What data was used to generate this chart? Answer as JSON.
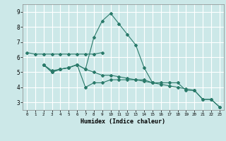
{
  "background_color": "#cce8e8",
  "grid_color": "#ffffff",
  "line_color": "#2a7a6a",
  "x_label": "Humidex (Indice chaleur)",
  "ylim": [
    2.5,
    9.5
  ],
  "xlim": [
    -0.5,
    23.5
  ],
  "yticks": [
    3,
    4,
    5,
    6,
    7,
    8,
    9
  ],
  "xticks": [
    0,
    1,
    2,
    3,
    4,
    5,
    6,
    7,
    8,
    9,
    10,
    11,
    12,
    13,
    14,
    15,
    16,
    17,
    18,
    19,
    20,
    21,
    22,
    23
  ],
  "series": [
    {
      "x": [
        0,
        1,
        2,
        3,
        4,
        5,
        6,
        7,
        8,
        9
      ],
      "y": [
        6.3,
        6.2,
        6.2,
        6.2,
        6.2,
        6.2,
        6.2,
        6.2,
        6.2,
        6.3
      ]
    },
    {
      "x": [
        2,
        3,
        4,
        5,
        6,
        7,
        8,
        9,
        10,
        11,
        12,
        13,
        14,
        15
      ],
      "y": [
        5.5,
        5.0,
        5.2,
        5.3,
        5.5,
        5.2,
        7.3,
        8.4,
        8.9,
        8.2,
        7.5,
        6.8,
        5.3,
        4.3
      ]
    },
    {
      "x": [
        2,
        3,
        4,
        5,
        6,
        7,
        8,
        9,
        10,
        11,
        12,
        13,
        14,
        15,
        16,
        17,
        18,
        19,
        20,
        21,
        22,
        23
      ],
      "y": [
        5.5,
        5.0,
        5.2,
        5.3,
        5.5,
        4.0,
        4.3,
        4.3,
        4.5,
        4.5,
        4.5,
        4.5,
        4.5,
        4.3,
        4.3,
        4.3,
        4.3,
        3.8,
        3.8,
        3.2,
        3.2,
        2.7
      ]
    },
    {
      "x": [
        2,
        3,
        4,
        5,
        6,
        7,
        8,
        9,
        10,
        11,
        12,
        13,
        14,
        15,
        16,
        17,
        18,
        19,
        20,
        21,
        22,
        23
      ],
      "y": [
        5.5,
        5.1,
        5.2,
        5.3,
        5.5,
        5.2,
        5.0,
        4.8,
        4.8,
        4.7,
        4.6,
        4.5,
        4.4,
        4.3,
        4.2,
        4.1,
        4.0,
        3.9,
        3.8,
        3.2,
        3.2,
        2.7
      ]
    }
  ]
}
